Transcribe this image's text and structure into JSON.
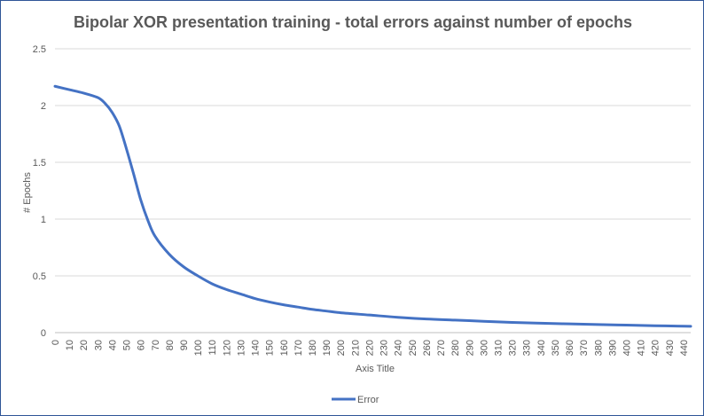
{
  "chart_data": {
    "type": "line",
    "title": "Bipolar XOR presentation training - total errors against number of epochs",
    "xlabel": "Axis Title",
    "ylabel": "# Epochs",
    "xlim": [
      0,
      445
    ],
    "ylim": [
      0,
      2.5
    ],
    "x_ticks": [
      "0",
      "10",
      "20",
      "30",
      "40",
      "50",
      "60",
      "70",
      "80",
      "90",
      "100",
      "110",
      "120",
      "130",
      "140",
      "150",
      "160",
      "170",
      "180",
      "190",
      "200",
      "210",
      "220",
      "230",
      "240",
      "250",
      "260",
      "270",
      "280",
      "290",
      "300",
      "310",
      "320",
      "330",
      "340",
      "350",
      "360",
      "370",
      "380",
      "390",
      "400",
      "410",
      "420",
      "430",
      "440"
    ],
    "y_ticks": [
      "0",
      "0.5",
      "1",
      "1.5",
      "2",
      "2.5"
    ],
    "grid": "horizontal",
    "legend_position": "bottom",
    "series": [
      {
        "name": "Error",
        "color": "#4472c4",
        "x": [
          0,
          10,
          20,
          30,
          35,
          40,
          45,
          50,
          55,
          60,
          65,
          70,
          80,
          90,
          100,
          110,
          120,
          130,
          140,
          150,
          160,
          170,
          180,
          190,
          200,
          220,
          240,
          260,
          280,
          300,
          320,
          340,
          360,
          380,
          400,
          420,
          440,
          445
        ],
        "y": [
          2.17,
          2.14,
          2.11,
          2.07,
          2.02,
          1.94,
          1.82,
          1.62,
          1.4,
          1.17,
          0.99,
          0.85,
          0.69,
          0.58,
          0.5,
          0.43,
          0.38,
          0.34,
          0.3,
          0.27,
          0.245,
          0.225,
          0.205,
          0.19,
          0.175,
          0.155,
          0.135,
          0.12,
          0.11,
          0.1,
          0.09,
          0.083,
          0.077,
          0.071,
          0.066,
          0.061,
          0.057,
          0.056
        ]
      }
    ]
  }
}
